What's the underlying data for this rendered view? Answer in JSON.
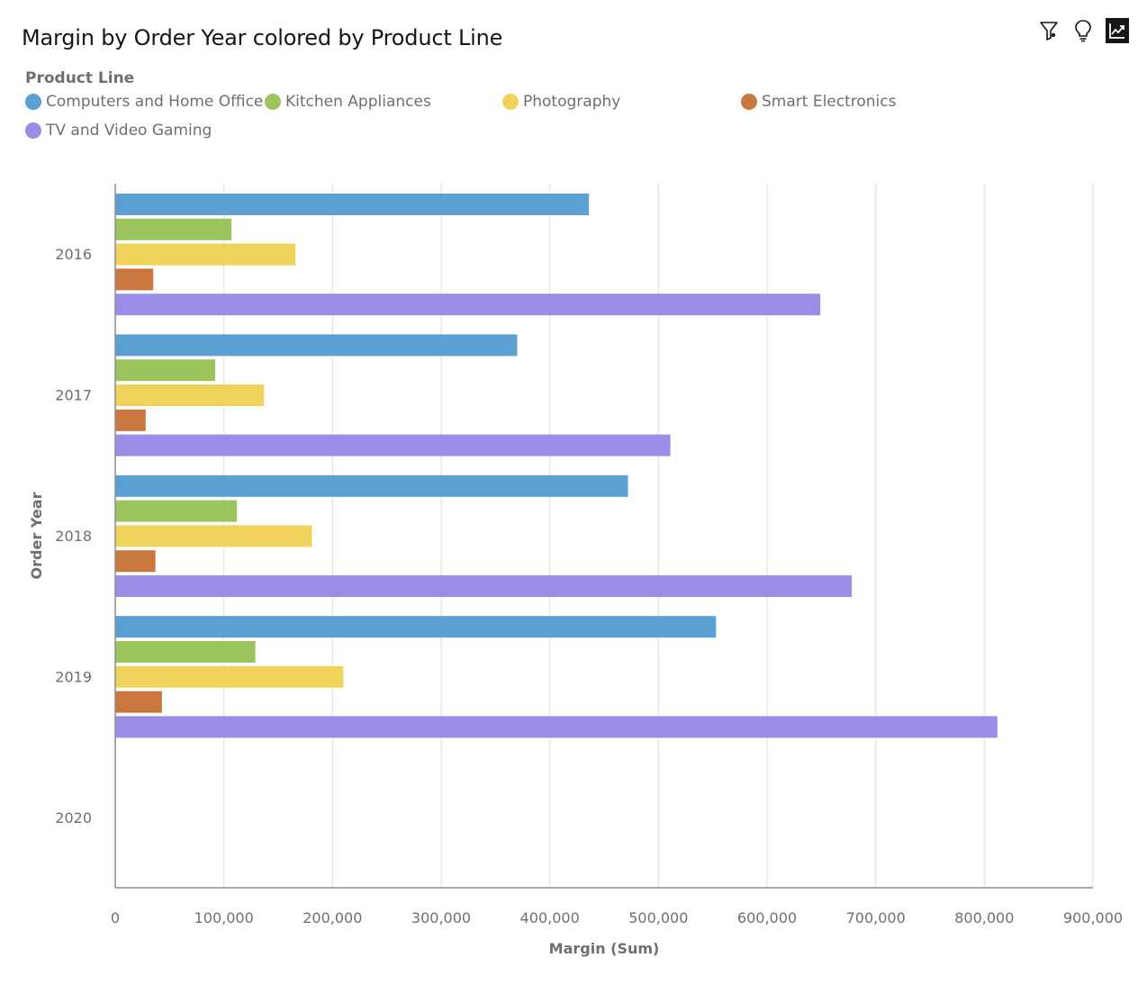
{
  "title": "Margin by Order Year colored by Product Line",
  "toolbar": {
    "icons": [
      "filter-icon",
      "lightbulb-icon",
      "chart-insight-icon"
    ]
  },
  "legend": {
    "title": "Product Line",
    "items": [
      {
        "label": "Computers and Home Office",
        "color": "#5aa0d3"
      },
      {
        "label": "Kitchen Appliances",
        "color": "#9bc55c"
      },
      {
        "label": "Photography",
        "color": "#f0d35a"
      },
      {
        "label": "Smart Electronics",
        "color": "#c9773e"
      },
      {
        "label": "TV and Video Gaming",
        "color": "#998de5"
      }
    ]
  },
  "chart_data": {
    "type": "bar",
    "orientation": "horizontal",
    "title": "Margin by Order Year colored by Product Line",
    "xlabel": "Margin (Sum)",
    "ylabel": "Order Year",
    "xlim": [
      0,
      900000
    ],
    "x_ticks": [
      0,
      100000,
      200000,
      300000,
      400000,
      500000,
      600000,
      700000,
      800000,
      900000
    ],
    "x_tick_labels": [
      "0",
      "100,000",
      "200,000",
      "300,000",
      "400,000",
      "500,000",
      "600,000",
      "700,000",
      "800,000",
      "900,000"
    ],
    "grid": true,
    "legend_position": "top-left",
    "categories": [
      "2016",
      "2017",
      "2018",
      "2019",
      "2020"
    ],
    "series": [
      {
        "name": "Computers and Home Office",
        "color": "#5aa0d3",
        "values": [
          436000,
          370000,
          472000,
          553000,
          null
        ]
      },
      {
        "name": "Kitchen Appliances",
        "color": "#9bc55c",
        "values": [
          107000,
          92000,
          112000,
          129000,
          null
        ]
      },
      {
        "name": "Photography",
        "color": "#f0d35a",
        "values": [
          166000,
          137000,
          181000,
          210000,
          null
        ]
      },
      {
        "name": "Smart Electronics",
        "color": "#c9773e",
        "values": [
          35000,
          28000,
          37000,
          43000,
          null
        ]
      },
      {
        "name": "TV and Video Gaming",
        "color": "#998de5",
        "values": [
          649000,
          511000,
          678000,
          812000,
          null
        ]
      }
    ]
  }
}
